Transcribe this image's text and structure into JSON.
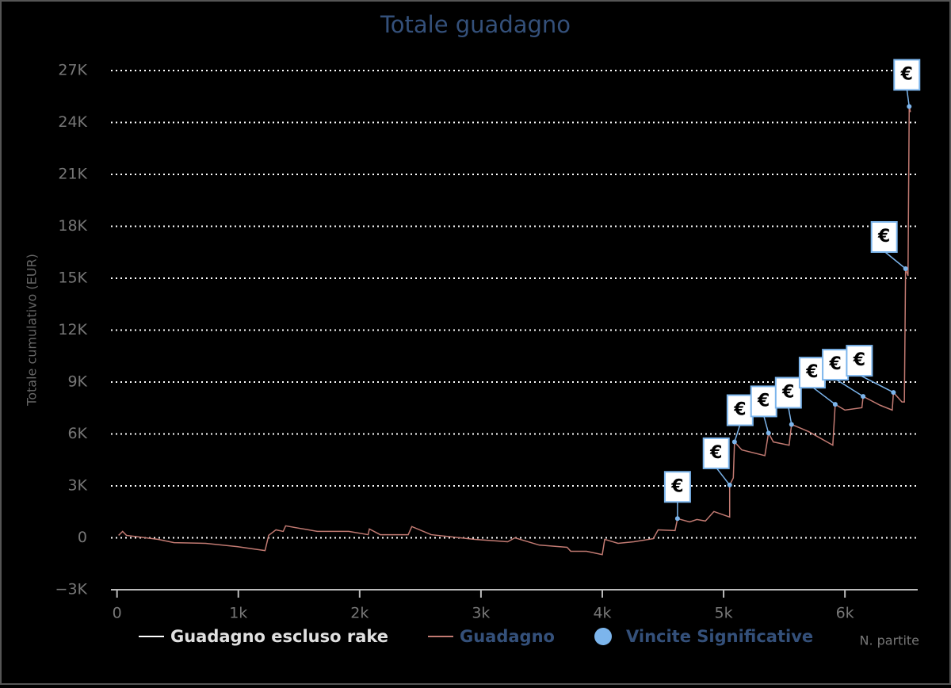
{
  "chart_data": {
    "type": "line",
    "title": "Totale guadagno",
    "y_label": "Totale cumulativo (EUR)",
    "x_label": "N. partite",
    "flag_label": "€",
    "xlim": [
      -50,
      6600
    ],
    "xticks": [
      0,
      {
        "value": 1000,
        "label": "1k"
      },
      {
        "value": 2000,
        "label": "2k"
      },
      {
        "value": 3000,
        "label": "3k"
      },
      {
        "value": 4000,
        "label": "4k"
      },
      {
        "value": 5000,
        "label": "5k"
      },
      {
        "value": 6000,
        "label": "6k"
      }
    ],
    "ylim": [
      -3000,
      27000
    ],
    "yticks": [
      {
        "value": -3000,
        "label": "−3K"
      },
      0,
      {
        "value": 3000,
        "label": "3K"
      },
      {
        "value": 6000,
        "label": "6K"
      },
      {
        "value": 9000,
        "label": "9K"
      },
      {
        "value": 12000,
        "label": "12K"
      },
      {
        "value": 15000,
        "label": "15K"
      },
      {
        "value": 18000,
        "label": "18K"
      },
      {
        "value": 21000,
        "label": "21K"
      },
      {
        "value": 24000,
        "label": "24K"
      },
      {
        "value": 27000,
        "label": "27K"
      }
    ],
    "grid": true,
    "series": [
      {
        "name": "Guadagno escluso rake",
        "color": "#ffffff",
        "kind": "line",
        "x": [],
        "values": []
      },
      {
        "name": "Guadagno",
        "color": "#c27a72",
        "kind": "line",
        "x": [
          13,
          46,
          78,
          340,
          470,
          730,
          990,
          1220,
          1250,
          1310,
          1370,
          1390,
          1650,
          1910,
          2070,
          2080,
          2170,
          2400,
          2430,
          2590,
          2950,
          3220,
          3280,
          3480,
          3710,
          3740,
          3870,
          4000,
          4020,
          4130,
          4260,
          4420,
          4460,
          4600,
          4620,
          4720,
          4780,
          4850,
          4920,
          5050,
          5050,
          5080,
          5090,
          5150,
          5340,
          5370,
          5410,
          5540,
          5560,
          5700,
          5900,
          5920,
          6000,
          6140,
          6150,
          6290,
          6390,
          6400,
          6470,
          6490,
          6500,
          6520,
          6530,
          6540
        ],
        "values": [
          140,
          370,
          140,
          -90,
          -280,
          -320,
          -510,
          -740,
          140,
          460,
          370,
          690,
          370,
          370,
          180,
          510,
          180,
          180,
          650,
          180,
          -90,
          -230,
          0,
          -420,
          -550,
          -780,
          -780,
          -970,
          -90,
          -320,
          -230,
          -50,
          460,
          420,
          1110,
          920,
          1060,
          970,
          1520,
          1200,
          3050,
          3460,
          5540,
          5080,
          4750,
          6050,
          5540,
          5350,
          6550,
          6140,
          5350,
          7710,
          7380,
          7520,
          8170,
          7660,
          7380,
          8400,
          7850,
          7850,
          15550,
          15140,
          24920,
          24600
        ]
      },
      {
        "name": "Vincite Significative",
        "color": "#7cb5ec",
        "kind": "flags",
        "x": [
          4620,
          5050,
          5090,
          5370,
          5560,
          5920,
          6150,
          6400,
          6500,
          6530
        ],
        "values": [
          1110,
          3050,
          5540,
          6050,
          6550,
          7710,
          8170,
          8400,
          15550,
          24920
        ]
      }
    ]
  }
}
